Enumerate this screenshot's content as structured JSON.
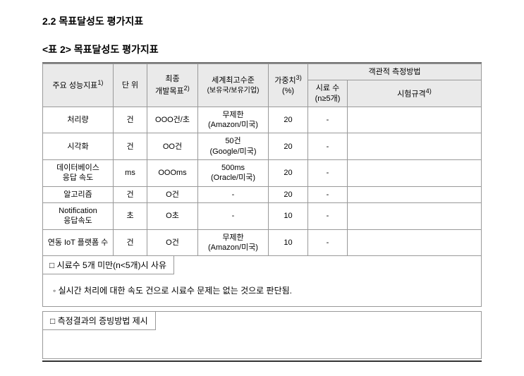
{
  "section": {
    "title": "2.2 목표달성도 평가지표",
    "table_caption": "<표 2> 목표달성도 평가지표"
  },
  "table": {
    "headers": {
      "h1": "주요 성능지표",
      "h1_sup": "1)",
      "h2": "단 위",
      "h3_line1": "최종",
      "h3_line2": "개발목표",
      "h3_sup": "2)",
      "h4_line1": "세계최고수준",
      "h4_line2": "(보유국/보유기업)",
      "h5_line1": "가중치",
      "h5_sup": "3)",
      "h5_line2": "(%)",
      "h6": "객관적 측정방법",
      "h6a_line1": "시료 수",
      "h6a_line2": "(n≥5개)",
      "h6b": "시험규격",
      "h6b_sup": "4)"
    },
    "rows": [
      {
        "indicator": "처리량",
        "unit": "건",
        "target": "OOO건/초",
        "world_line1": "무제한",
        "world_line2": "(Amazon/미국)",
        "weight": "20",
        "sample": "-",
        "standard": ""
      },
      {
        "indicator": "시각화",
        "unit": "건",
        "target": "OO건",
        "world_line1": "50건",
        "world_line2": "(Google/미국)",
        "weight": "20",
        "sample": "-",
        "standard": ""
      },
      {
        "indicator": "데이터베이스",
        "indicator_line2": "응답 속도",
        "unit": "ms",
        "target": "OOOms",
        "world_line1": "500ms",
        "world_line2": "(Oracle/미국)",
        "weight": "20",
        "sample": "-",
        "standard": ""
      },
      {
        "indicator": "알고리즘",
        "unit": "건",
        "target": "O건",
        "world_line1": "-",
        "world_line2": "",
        "weight": "20",
        "sample": "-",
        "standard": ""
      },
      {
        "indicator": "Notification",
        "indicator_line2": "응답속도",
        "unit": "초",
        "target": "O초",
        "world_line1": "-",
        "world_line2": "",
        "weight": "10",
        "sample": "-",
        "standard": ""
      },
      {
        "indicator": "연동 IoT 플랫폼 수",
        "unit": "건",
        "target": "O건",
        "world_line1": "무제한",
        "world_line2": "(Amazon/미국)",
        "weight": "10",
        "sample": "-",
        "standard": ""
      }
    ]
  },
  "sub1": {
    "header": "□ 시료수 5개 미만(n<5개)시 사유",
    "body": "◦ 실시간 처리에 대한 속도 건으로 시료수 문제는 없는 것으로 판단됨."
  },
  "sub2": {
    "header": "□ 측정결과의 증빙방법 제시"
  }
}
